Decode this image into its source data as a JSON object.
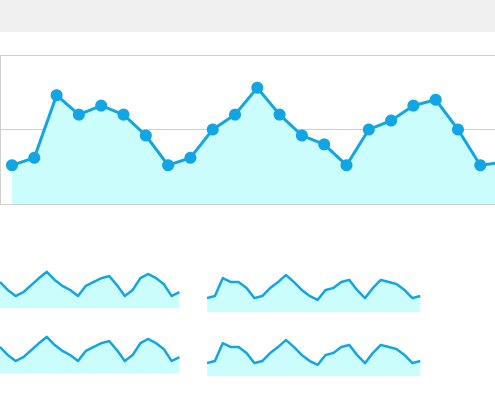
{
  "chart_data": [
    {
      "type": "area",
      "markers": true,
      "color": "#11a6e3",
      "fill_color": "#ccfdfd",
      "values": [
        26,
        31,
        73,
        60,
        66,
        60,
        46,
        26,
        31,
        50,
        60,
        78,
        60,
        46,
        40,
        26,
        50,
        56,
        66,
        70,
        50,
        26,
        28
      ],
      "ylim": [
        0,
        100
      ],
      "yticks": [
        50
      ],
      "grid": true
    },
    {
      "type": "area",
      "markers": false,
      "color": "#11a6e3",
      "fill_color": "#ccfdfd",
      "values": [
        60,
        37,
        20,
        31,
        51,
        71,
        89,
        66,
        49,
        37,
        20,
        49,
        60,
        71,
        77,
        51,
        20,
        37,
        71,
        83,
        71,
        54,
        20,
        31
      ],
      "ylim": [
        0,
        100
      ]
    },
    {
      "type": "area",
      "markers": false,
      "color": "#11a6e3",
      "fill_color": "#ccfdfd",
      "values": [
        14,
        20,
        71,
        60,
        60,
        43,
        14,
        20,
        43,
        60,
        80,
        60,
        37,
        20,
        9,
        37,
        43,
        60,
        66,
        37,
        14,
        43,
        66,
        60,
        54,
        37,
        14,
        20
      ],
      "ylim": [
        0,
        100
      ]
    },
    {
      "type": "area",
      "markers": false,
      "color": "#11a6e3",
      "fill_color": "#ccfdfd",
      "values": [
        60,
        37,
        20,
        31,
        51,
        71,
        89,
        66,
        49,
        37,
        20,
        49,
        60,
        71,
        77,
        51,
        20,
        37,
        71,
        83,
        71,
        54,
        20,
        31
      ],
      "ylim": [
        0,
        100
      ]
    },
    {
      "type": "area",
      "markers": false,
      "color": "#11a6e3",
      "fill_color": "#ccfdfd",
      "values": [
        14,
        20,
        71,
        60,
        60,
        43,
        14,
        20,
        43,
        60,
        80,
        60,
        37,
        20,
        9,
        37,
        43,
        60,
        66,
        37,
        14,
        43,
        66,
        60,
        54,
        37,
        14,
        20
      ],
      "ylim": [
        0,
        100
      ]
    }
  ]
}
